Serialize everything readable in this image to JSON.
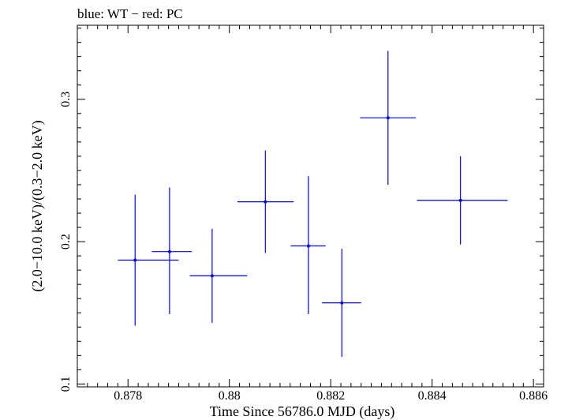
{
  "chart_data": {
    "type": "scatter",
    "title": "blue: WT − red: PC",
    "xlabel": "Time Since 56786.0 MJD (days)",
    "ylabel": "(2.0−10.0 keV)/(0.3−2.0 keV)",
    "xlim": [
      0.877,
      0.8862
    ],
    "ylim": [
      0.098,
      0.352
    ],
    "xticks": [
      {
        "v": 0.878,
        "label": "0.878"
      },
      {
        "v": 0.88,
        "label": "0.88"
      },
      {
        "v": 0.882,
        "label": "0.882"
      },
      {
        "v": 0.884,
        "label": "0.884"
      },
      {
        "v": 0.886,
        "label": "0.886"
      }
    ],
    "yticks": [
      {
        "v": 0.1,
        "label": "0.1"
      },
      {
        "v": 0.2,
        "label": "0.2"
      },
      {
        "v": 0.3,
        "label": "0.3"
      }
    ],
    "series": [
      {
        "color": "#0000ff",
        "points": [
          {
            "x": 0.87814,
            "xlo": 0.8778,
            "xhi": 0.879,
            "y": 0.187,
            "ylo": 0.141,
            "yhi": 0.233
          },
          {
            "x": 0.87882,
            "xlo": 0.87847,
            "xhi": 0.87926,
            "y": 0.193,
            "ylo": 0.149,
            "yhi": 0.238
          },
          {
            "x": 0.87966,
            "xlo": 0.87922,
            "xhi": 0.88035,
            "y": 0.176,
            "ylo": 0.143,
            "yhi": 0.209
          },
          {
            "x": 0.88071,
            "xlo": 0.88016,
            "xhi": 0.88127,
            "y": 0.228,
            "ylo": 0.192,
            "yhi": 0.264
          },
          {
            "x": 0.88156,
            "xlo": 0.88121,
            "xhi": 0.8819,
            "y": 0.197,
            "ylo": 0.149,
            "yhi": 0.246
          },
          {
            "x": 0.88222,
            "xlo": 0.88183,
            "xhi": 0.8826,
            "y": 0.157,
            "ylo": 0.119,
            "yhi": 0.195
          },
          {
            "x": 0.88313,
            "xlo": 0.88258,
            "xhi": 0.88368,
            "y": 0.287,
            "ylo": 0.24,
            "yhi": 0.334
          },
          {
            "x": 0.88456,
            "xlo": 0.8837,
            "xhi": 0.88549,
            "y": 0.229,
            "ylo": 0.198,
            "yhi": 0.26
          }
        ]
      }
    ]
  }
}
